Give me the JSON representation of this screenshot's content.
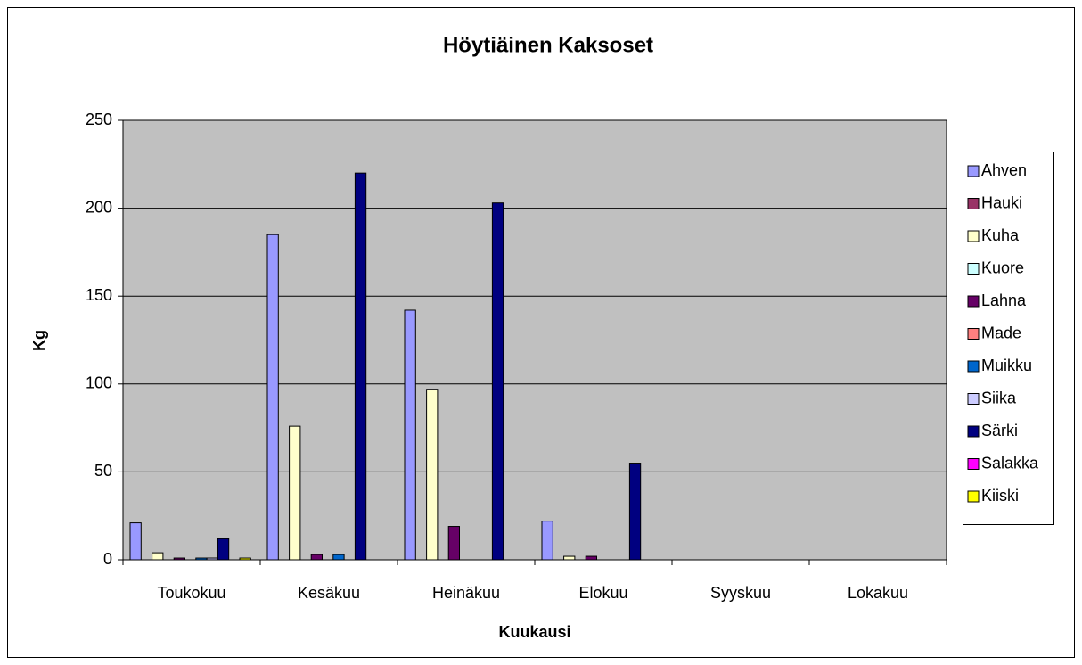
{
  "chart_data": {
    "type": "bar",
    "title": "Höytiäinen Kaksoset",
    "x_label": "Kuukausi",
    "y_label": "Kg",
    "categories": [
      "Toukokuu",
      "Kesäkuu",
      "Heinäkuu",
      "Elokuu",
      "Syyskuu",
      "Lokakuu"
    ],
    "series": [
      {
        "name": "Ahven",
        "color": "#9999FF",
        "values": [
          21,
          185,
          142,
          22,
          0,
          0
        ]
      },
      {
        "name": "Hauki",
        "color": "#993366",
        "values": [
          0,
          0,
          0,
          0,
          0,
          0
        ]
      },
      {
        "name": "Kuha",
        "color": "#FFFFCC",
        "values": [
          4,
          76,
          97,
          2,
          0,
          0
        ]
      },
      {
        "name": "Kuore",
        "color": "#CCFFFF",
        "values": [
          0,
          0,
          0,
          0,
          0,
          0
        ]
      },
      {
        "name": "Lahna",
        "color": "#660066",
        "values": [
          1,
          3,
          19,
          2,
          0,
          0
        ]
      },
      {
        "name": "Made",
        "color": "#FF8080",
        "values": [
          0,
          0,
          0,
          0,
          0,
          0
        ]
      },
      {
        "name": "Muikku",
        "color": "#0066CC",
        "values": [
          1,
          3,
          0,
          0,
          0,
          0
        ]
      },
      {
        "name": "Siika",
        "color": "#CCCCFF",
        "values": [
          1,
          0,
          0,
          0,
          0,
          0
        ]
      },
      {
        "name": "Särki",
        "color": "#000080",
        "values": [
          12,
          220,
          203,
          55,
          0,
          0
        ]
      },
      {
        "name": "Salakka",
        "color": "#FF00FF",
        "values": [
          0,
          0,
          0,
          0,
          0,
          0
        ]
      },
      {
        "name": "Kiiski",
        "color": "#FFFF00",
        "values": [
          1,
          0,
          0,
          0,
          0,
          0
        ]
      }
    ],
    "ylim": [
      0,
      250
    ],
    "yticks": [
      0,
      50,
      100,
      150,
      200,
      250
    ],
    "grid": true,
    "legend": "right"
  }
}
